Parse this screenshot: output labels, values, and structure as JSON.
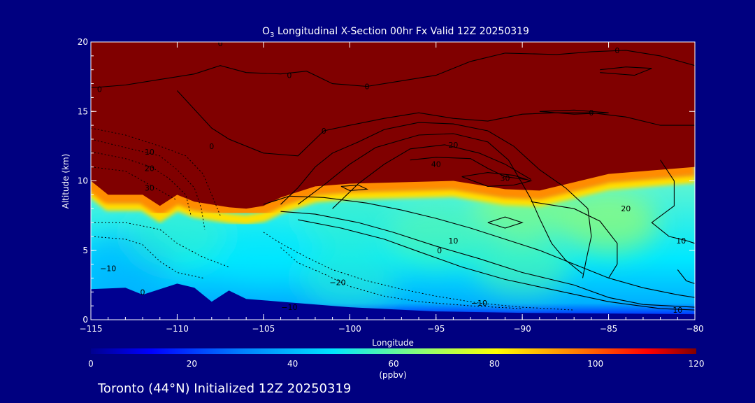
{
  "chart_data": {
    "type": "heatmap",
    "title": "O3 Longitudinal X-Section 00hr  Fx Valid 12Z 20250319",
    "title_parts": {
      "pre": "O",
      "sub": "3",
      "post": " Longitudinal X-Section 00hr  Fx Valid 12Z 20250319"
    },
    "xlabel": "Longitude",
    "ylabel": "Altitude (km)",
    "xlim": [
      -115,
      -80
    ],
    "ylim": [
      0,
      20
    ],
    "x_ticks": [
      -115,
      -110,
      -105,
      -100,
      -95,
      -90,
      -85,
      -80
    ],
    "x_tick_labels": [
      "−115",
      "−110",
      "−105",
      "−100",
      "−95",
      "−90",
      "−85",
      "−80"
    ],
    "y_ticks": [
      0,
      5,
      10,
      15,
      20
    ],
    "y_tick_labels": [
      "0",
      "5",
      "10",
      "15",
      "20"
    ],
    "colorbar": {
      "ticks": [
        0,
        20,
        40,
        60,
        80,
        100,
        120
      ],
      "tick_labels": [
        "0",
        "20",
        "40",
        "60",
        "80",
        "100",
        "120"
      ],
      "label": "(ppbv)",
      "colors": [
        "#000090",
        "#0000ff",
        "#0080ff",
        "#00e6ff",
        "#90ff70",
        "#ffff00",
        "#ff8000",
        "#ff0000",
        "#800000"
      ]
    },
    "surface_profile": [
      [
        -115,
        2.2
      ],
      [
        -113,
        2.3
      ],
      [
        -112,
        1.8
      ],
      [
        -110,
        2.6
      ],
      [
        -109,
        2.3
      ],
      [
        -108,
        1.3
      ],
      [
        -107,
        2.1
      ],
      [
        -106,
        1.5
      ],
      [
        -104,
        1.3
      ],
      [
        -100,
        0.9
      ],
      [
        -95,
        0.6
      ],
      [
        -90,
        0.5
      ],
      [
        -85,
        0.45
      ],
      [
        -80,
        0.4
      ]
    ],
    "tropopause_profile": [
      [
        -115,
        10
      ],
      [
        -114,
        9
      ],
      [
        -112,
        9
      ],
      [
        -111,
        8.2
      ],
      [
        -110,
        9
      ],
      [
        -109,
        8.5
      ],
      [
        -107,
        8.1
      ],
      [
        -106,
        8
      ],
      [
        -105,
        8.2
      ],
      [
        -104,
        8.8
      ],
      [
        -102,
        9.6
      ],
      [
        -100,
        9.8
      ],
      [
        -97,
        9.9
      ],
      [
        -94,
        10
      ],
      [
        -91,
        9.4
      ],
      [
        -89,
        9.3
      ],
      [
        -87,
        9.9
      ],
      [
        -85,
        10.5
      ],
      [
        -80,
        11
      ]
    ],
    "field_points": [
      {
        "lon": -113,
        "alt": 4,
        "value": 35
      },
      {
        "lon": -105,
        "alt": 5,
        "value": 45
      },
      {
        "lon": -100,
        "alt": 3,
        "value": 50
      },
      {
        "lon": -95,
        "alt": 6,
        "value": 55
      },
      {
        "lon": -90,
        "alt": 4,
        "value": 55
      },
      {
        "lon": -85,
        "alt": 7,
        "value": 65
      },
      {
        "lon": -90,
        "alt": 8,
        "value": 62
      },
      {
        "lon": -100,
        "alt": 7.5,
        "value": 50
      },
      {
        "lon": -110,
        "alt": 6,
        "value": 50
      }
    ],
    "contour_labels": [
      {
        "lon": -107.5,
        "alt": 19.9,
        "text": "0"
      },
      {
        "lon": -114.5,
        "alt": 16.6,
        "text": "0"
      },
      {
        "lon": -103.5,
        "alt": 17.6,
        "text": "0"
      },
      {
        "lon": -99,
        "alt": 16.8,
        "text": "0"
      },
      {
        "lon": -84.5,
        "alt": 19.4,
        "text": "0"
      },
      {
        "lon": -86,
        "alt": 14.9,
        "text": "0"
      },
      {
        "lon": -101.5,
        "alt": 13.6,
        "text": "0"
      },
      {
        "lon": -108,
        "alt": 12.5,
        "text": "0"
      },
      {
        "lon": -94,
        "alt": 12.6,
        "text": "20"
      },
      {
        "lon": -95,
        "alt": 11.2,
        "text": "40"
      },
      {
        "lon": -91,
        "alt": 10.2,
        "text": "30"
      },
      {
        "lon": -111.6,
        "alt": 12.1,
        "text": "10"
      },
      {
        "lon": -111.6,
        "alt": 10.9,
        "text": "20"
      },
      {
        "lon": -111.6,
        "alt": 9.5,
        "text": "30"
      },
      {
        "lon": -84,
        "alt": 8,
        "text": "20"
      },
      {
        "lon": -94,
        "alt": 5.7,
        "text": "10"
      },
      {
        "lon": -94.8,
        "alt": 5,
        "text": "0"
      },
      {
        "lon": -114,
        "alt": 3.7,
        "text": "−10"
      },
      {
        "lon": -100.7,
        "alt": 2.7,
        "text": "−20"
      },
      {
        "lon": -112,
        "alt": 2.0,
        "text": "0"
      },
      {
        "lon": -103.5,
        "alt": 0.9,
        "text": "−10"
      },
      {
        "lon": -92.5,
        "alt": 1.2,
        "text": "−10"
      },
      {
        "lon": -80.8,
        "alt": 5.7,
        "text": "10"
      },
      {
        "lon": -81,
        "alt": 0.7,
        "text": "10"
      }
    ],
    "solid_contours": [
      [
        [
          -115,
          16.7
        ],
        [
          -113,
          16.9
        ],
        [
          -111,
          17.3
        ],
        [
          -109,
          17.7
        ],
        [
          -107.5,
          18.3
        ],
        [
          -106,
          17.8
        ],
        [
          -104,
          17.7
        ],
        [
          -102.5,
          17.9
        ],
        [
          -101,
          17.0
        ],
        [
          -99,
          16.8
        ],
        [
          -97,
          17.2
        ],
        [
          -95,
          17.6
        ],
        [
          -93,
          18.6
        ],
        [
          -91,
          19.2
        ],
        [
          -88,
          19.1
        ],
        [
          -86,
          19.3
        ],
        [
          -84,
          19.4
        ],
        [
          -82,
          19.0
        ],
        [
          -80,
          18.3
        ]
      ],
      [
        [
          -110,
          16.5
        ],
        [
          -108,
          13.8
        ],
        [
          -107,
          13.0
        ],
        [
          -105,
          12.0
        ],
        [
          -103,
          11.8
        ],
        [
          -101.5,
          13.6
        ],
        [
          -100,
          14.0
        ],
        [
          -98,
          14.5
        ],
        [
          -96,
          14.9
        ],
        [
          -94,
          14.5
        ],
        [
          -92,
          14.3
        ],
        [
          -90,
          14.8
        ],
        [
          -88,
          14.9
        ],
        [
          -86,
          14.9
        ],
        [
          -84,
          14.6
        ],
        [
          -82,
          14.0
        ],
        [
          -80,
          14.0
        ]
      ],
      [
        [
          -104,
          8.3
        ],
        [
          -103,
          9.5
        ],
        [
          -102,
          11.0
        ],
        [
          -101,
          12.0
        ],
        [
          -99.5,
          12.8
        ],
        [
          -98,
          13.7
        ],
        [
          -96,
          14.2
        ],
        [
          -94,
          14.1
        ],
        [
          -92,
          13.6
        ],
        [
          -90.5,
          12.5
        ],
        [
          -89,
          10.8
        ],
        [
          -87.5,
          9.5
        ],
        [
          -86.2,
          8.0
        ],
        [
          -86,
          6.0
        ],
        [
          -86.3,
          4.3
        ],
        [
          -86.5,
          3.0
        ]
      ],
      [
        [
          -103,
          8.3
        ],
        [
          -101.5,
          9.7
        ],
        [
          -100,
          11.2
        ],
        [
          -98.5,
          12.4
        ],
        [
          -96,
          13.3
        ],
        [
          -94,
          13.4
        ],
        [
          -92,
          12.8
        ],
        [
          -90.8,
          11.5
        ],
        [
          -90,
          9.8
        ],
        [
          -89.5,
          8.7
        ],
        [
          -89,
          7.3
        ],
        [
          -88.3,
          5.5
        ],
        [
          -87.5,
          4.3
        ],
        [
          -86.5,
          3.3
        ]
      ],
      [
        [
          -101,
          8.0
        ],
        [
          -99.5,
          9.8
        ],
        [
          -98,
          11.2
        ],
        [
          -96.5,
          12.3
        ],
        [
          -94.5,
          12.6
        ],
        [
          -92.5,
          12.0
        ],
        [
          -91,
          11.2
        ],
        [
          -89.5,
          10.1
        ]
      ],
      [
        [
          -96.5,
          11.5
        ],
        [
          -95,
          11.7
        ],
        [
          -93,
          11.6
        ],
        [
          -92,
          10.9
        ],
        [
          -91,
          10.3
        ],
        [
          -89.8,
          10.1
        ]
      ],
      [
        [
          -93.5,
          10.3
        ],
        [
          -92,
          10.6
        ],
        [
          -90.5,
          10.4
        ],
        [
          -89.5,
          10.0
        ],
        [
          -90.5,
          9.7
        ],
        [
          -92,
          9.6
        ],
        [
          -93.5,
          10.3
        ]
      ],
      [
        [
          -105,
          8.3
        ],
        [
          -103.5,
          8.9
        ],
        [
          -101.5,
          8.8
        ],
        [
          -99,
          8.4
        ],
        [
          -97,
          7.9
        ],
        [
          -95,
          7.3
        ],
        [
          -93,
          6.6
        ],
        [
          -91,
          5.8
        ],
        [
          -89,
          5.0
        ],
        [
          -87,
          4.0
        ],
        [
          -85,
          3.0
        ],
        [
          -83,
          2.3
        ],
        [
          -81,
          1.8
        ],
        [
          -80,
          1.6
        ]
      ],
      [
        [
          -104,
          7.8
        ],
        [
          -102,
          7.6
        ],
        [
          -99.5,
          7.0
        ],
        [
          -97.5,
          6.3
        ],
        [
          -95,
          5.3
        ],
        [
          -92.5,
          4.4
        ],
        [
          -90,
          3.4
        ],
        [
          -87,
          2.5
        ],
        [
          -85,
          1.6
        ],
        [
          -83,
          1.1
        ],
        [
          -80,
          0.9
        ]
      ],
      [
        [
          -103,
          7.2
        ],
        [
          -100.5,
          6.6
        ],
        [
          -98,
          5.8
        ],
        [
          -96,
          4.9
        ],
        [
          -93.5,
          3.8
        ],
        [
          -91,
          2.9
        ],
        [
          -88,
          2.1
        ],
        [
          -85,
          1.3
        ],
        [
          -82,
          0.8
        ],
        [
          -80,
          0.7
        ]
      ],
      [
        [
          -89.5,
          8.5
        ],
        [
          -87,
          8.0
        ],
        [
          -85.5,
          7.1
        ],
        [
          -84.5,
          5.5
        ],
        [
          -84.5,
          4.0
        ],
        [
          -85,
          3.0
        ]
      ],
      [
        [
          -92,
          7.0
        ],
        [
          -91,
          7.4
        ],
        [
          -90,
          7.0
        ],
        [
          -91,
          6.6
        ],
        [
          -92,
          7.0
        ]
      ],
      [
        [
          -82,
          11.5
        ],
        [
          -81.2,
          10.0
        ],
        [
          -81.2,
          8.2
        ],
        [
          -82.5,
          7.0
        ],
        [
          -81.5,
          6.0
        ],
        [
          -80.5,
          5.7
        ],
        [
          -80,
          5.5
        ]
      ],
      [
        [
          -81,
          3.6
        ],
        [
          -80.5,
          2.8
        ],
        [
          -80,
          2.6
        ]
      ],
      [
        [
          -85.5,
          18.0
        ],
        [
          -84,
          18.2
        ],
        [
          -82.5,
          18.1
        ],
        [
          -83.5,
          17.6
        ],
        [
          -85.5,
          17.8
        ]
      ],
      [
        [
          -89,
          15.0
        ],
        [
          -87,
          15.1
        ],
        [
          -85,
          14.9
        ],
        [
          -87,
          14.8
        ],
        [
          -89,
          15.0
        ]
      ],
      [
        [
          -100.5,
          9.6
        ],
        [
          -99.5,
          9.7
        ],
        [
          -99,
          9.4
        ],
        [
          -100,
          9.3
        ],
        [
          -100.5,
          9.6
        ]
      ]
    ],
    "dashed_contours": [
      [
        [
          -115,
          13.8
        ],
        [
          -113,
          13.3
        ],
        [
          -111,
          12.5
        ],
        [
          -109.5,
          11.8
        ],
        [
          -108.5,
          10.5
        ],
        [
          -108,
          9.0
        ],
        [
          -107.5,
          7.5
        ]
      ],
      [
        [
          -115,
          13.0
        ],
        [
          -113,
          12.4
        ],
        [
          -111,
          11.8
        ],
        [
          -110,
          10.8
        ],
        [
          -109,
          9.5
        ],
        [
          -108.6,
          8.0
        ],
        [
          -108.4,
          6.5
        ]
      ],
      [
        [
          -115,
          12.1
        ],
        [
          -113,
          11.6
        ],
        [
          -111.5,
          11.0
        ],
        [
          -110.5,
          10.2
        ],
        [
          -109.5,
          9.0
        ],
        [
          -109.2,
          7.5
        ]
      ],
      [
        [
          -115,
          11.0
        ],
        [
          -113,
          10.7
        ],
        [
          -112,
          10.0
        ],
        [
          -111,
          9.3
        ],
        [
          -110,
          8.6
        ]
      ],
      [
        [
          -115,
          7.0
        ],
        [
          -113,
          7.0
        ],
        [
          -111,
          6.5
        ],
        [
          -110,
          5.5
        ],
        [
          -108.5,
          4.5
        ],
        [
          -107,
          3.8
        ]
      ],
      [
        [
          -115,
          6.0
        ],
        [
          -113,
          5.8
        ],
        [
          -112,
          5.4
        ],
        [
          -111,
          4.2
        ],
        [
          -110,
          3.4
        ],
        [
          -108.5,
          3.0
        ]
      ],
      [
        [
          -105,
          6.3
        ],
        [
          -104,
          5.5
        ],
        [
          -102.5,
          4.5
        ],
        [
          -101,
          3.6
        ],
        [
          -99,
          2.8
        ],
        [
          -97,
          2.2
        ],
        [
          -95,
          1.7
        ],
        [
          -92.5,
          1.2
        ],
        [
          -90,
          0.9
        ],
        [
          -87,
          0.7
        ]
      ],
      [
        [
          -104,
          5.2
        ],
        [
          -103,
          4.1
        ],
        [
          -101.5,
          3.3
        ],
        [
          -100,
          2.4
        ],
        [
          -98,
          1.7
        ],
        [
          -96,
          1.3
        ],
        [
          -93,
          1.0
        ],
        [
          -90,
          0.8
        ]
      ]
    ]
  },
  "footer": {
    "text": "Toronto (44°N) Initialized 12Z 20250319"
  }
}
